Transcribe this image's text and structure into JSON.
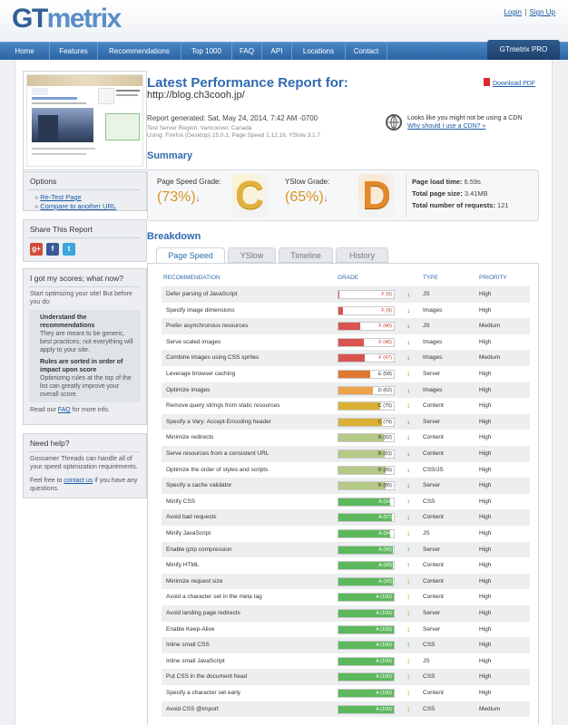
{
  "header": {
    "logo": "GTmetrix",
    "login": "Login",
    "signup": "Sign Up",
    "separator": "|"
  },
  "nav": {
    "items": [
      "Home",
      "Features",
      "Recommendations",
      "Top 1000",
      "FAQ",
      "API",
      "Locations",
      "Contact"
    ],
    "pro": "GTmetrix PRO"
  },
  "report": {
    "title": "Latest Performance Report for:",
    "url": "http://blog.ch3cooh.jp/",
    "download_pdf": "Download PDF",
    "generated": "Report generated: Sat, May 24, 2014, 7:42 AM -0700",
    "server_region": "Test Server Region: Vancouver, Canada",
    "using": "Using: Firefox (Desktop) 25.0.1, Page Speed 1.12.16, YSlow 3.1.7",
    "cdn_line1": "Looks like you might not be using a CDN",
    "cdn_line2": "Why should I use a CDN? »"
  },
  "summary": {
    "heading": "Summary",
    "pagespeed_label": "Page Speed Grade:",
    "pagespeed_score": "(73%)",
    "pagespeed_letter": "C",
    "yslow_label": "YSlow Grade:",
    "yslow_score": "(65%)",
    "yslow_letter": "D",
    "load_time_label": "Page load time:",
    "load_time": "6.59s",
    "size_label": "Total page size:",
    "size": "3.41MB",
    "requests_label": "Total number of requests:",
    "requests": "121"
  },
  "sidebar": {
    "options_title": "Options",
    "retest": "Re-Test Page",
    "compare": "Compare to another URL",
    "share_title": "Share This Report",
    "scores_title": "I got my scores; what now?",
    "scores_intro": "Start optimizing your site! But before you do:",
    "tip1_title": "Understand the recommendations",
    "tip1_text": "They are meant to be generic, best practices; not everything will apply to your site.",
    "tip2_title": "Rules are sorted in order of impact upon score",
    "tip2_text": "Optimizing rules at the top of the list can greatly improve your overall score.",
    "read_our": "Read our",
    "faq": "FAQ",
    "more_info": "for more info.",
    "help_title": "Need help?",
    "help_text": "Gossamer Threads can handle all of your speed optimization requirements.",
    "feel_free": "Feel free to",
    "contact_us": "contact us",
    "questions": "if you have any questions."
  },
  "breakdown": {
    "heading": "Breakdown",
    "tabs": [
      "Page Speed",
      "YSlow",
      "Timeline",
      "History"
    ],
    "columns": [
      "RECOMMENDATION",
      "GRADE",
      "TYPE",
      "PRIORITY"
    ],
    "rows": [
      {
        "name": "Defer parsing of JavaScript",
        "grade": "F (0)",
        "score": 0,
        "color": "#d9534f",
        "dir": "down",
        "type": "JS",
        "priority": "High"
      },
      {
        "name": "Specify image dimensions",
        "grade": "F (9)",
        "score": 9,
        "color": "#d9534f",
        "dir": "down",
        "type": "Images",
        "priority": "High"
      },
      {
        "name": "Prefer asynchronous resources",
        "grade": "F (40)",
        "score": 40,
        "color": "#d9534f",
        "dir": "down",
        "type": "JS",
        "priority": "Medium"
      },
      {
        "name": "Serve scaled images",
        "grade": "F (46)",
        "score": 46,
        "color": "#d9534f",
        "dir": "down",
        "type": "Images",
        "priority": "High"
      },
      {
        "name": "Combine images using CSS sprites",
        "grade": "F (47)",
        "score": 47,
        "color": "#d9534f",
        "dir": "down",
        "type": "Images",
        "priority": "Medium"
      },
      {
        "name": "Leverage browser caching",
        "grade": "E (58)",
        "score": 58,
        "color": "#e0782f",
        "dir": "updown",
        "type": "Server",
        "priority": "High"
      },
      {
        "name": "Optimize images",
        "grade": "D (62)",
        "score": 62,
        "color": "#eda24a",
        "dir": "down",
        "type": "Images",
        "priority": "High"
      },
      {
        "name": "Remove query strings from static resources",
        "grade": "C (75)",
        "score": 75,
        "color": "#d9b134",
        "dir": "updown",
        "type": "Content",
        "priority": "High"
      },
      {
        "name": "Specify a Vary: Accept-Encoding header",
        "grade": "C (79)",
        "score": 79,
        "color": "#d9b134",
        "dir": "down",
        "type": "Server",
        "priority": "High"
      },
      {
        "name": "Minimize redirects",
        "grade": "B (82)",
        "score": 82,
        "color": "#b4c987",
        "dir": "down",
        "type": "Content",
        "priority": "High"
      },
      {
        "name": "Serve resources from a consistent URL",
        "grade": "B (83)",
        "score": 83,
        "color": "#b4c987",
        "dir": "down",
        "type": "Content",
        "priority": "High"
      },
      {
        "name": "Optimize the order of styles and scripts",
        "grade": "B (85)",
        "score": 85,
        "color": "#b4c987",
        "dir": "down",
        "type": "CSS/JS",
        "priority": "High"
      },
      {
        "name": "Specify a cache validator",
        "grade": "B (85)",
        "score": 85,
        "color": "#b4c987",
        "dir": "down",
        "type": "Server",
        "priority": "High"
      },
      {
        "name": "Minify CSS",
        "grade": "A (94)",
        "score": 94,
        "color": "#5cb85c",
        "dir": "up",
        "type": "CSS",
        "priority": "High"
      },
      {
        "name": "Avoid bad requests",
        "grade": "A (97)",
        "score": 97,
        "color": "#5cb85c",
        "dir": "down",
        "type": "Content",
        "priority": "High"
      },
      {
        "name": "Minify JavaScript",
        "grade": "A (94)",
        "score": 94,
        "color": "#5cb85c",
        "dir": "updown",
        "type": "JS",
        "priority": "High"
      },
      {
        "name": "Enable gzip compression",
        "grade": "A (99)",
        "score": 99,
        "color": "#5cb85c",
        "dir": "up",
        "type": "Server",
        "priority": "High"
      },
      {
        "name": "Minify HTML",
        "grade": "A (99)",
        "score": 99,
        "color": "#5cb85c",
        "dir": "up",
        "type": "Content",
        "priority": "High"
      },
      {
        "name": "Minimize request size",
        "grade": "A (99)",
        "score": 99,
        "color": "#5cb85c",
        "dir": "updown",
        "type": "Content",
        "priority": "High"
      },
      {
        "name": "Avoid a character set in the meta tag",
        "grade": "A (100)",
        "score": 100,
        "color": "#5cb85c",
        "dir": "updown",
        "type": "Content",
        "priority": "High"
      },
      {
        "name": "Avoid landing page redirects",
        "grade": "A (100)",
        "score": 100,
        "color": "#5cb85c",
        "dir": "updown",
        "type": "Server",
        "priority": "High"
      },
      {
        "name": "Enable Keep-Alive",
        "grade": "A (100)",
        "score": 100,
        "color": "#5cb85c",
        "dir": "updown",
        "type": "Server",
        "priority": "High"
      },
      {
        "name": "Inline small CSS",
        "grade": "A (100)",
        "score": 100,
        "color": "#5cb85c",
        "dir": "up",
        "type": "CSS",
        "priority": "High"
      },
      {
        "name": "Inline small JavaScript",
        "grade": "A (100)",
        "score": 100,
        "color": "#5cb85c",
        "dir": "updown",
        "type": "JS",
        "priority": "High"
      },
      {
        "name": "Put CSS in the document head",
        "grade": "A (100)",
        "score": 100,
        "color": "#5cb85c",
        "dir": "updown",
        "type": "CSS",
        "priority": "High"
      },
      {
        "name": "Specify a character set early",
        "grade": "A (100)",
        "score": 100,
        "color": "#5cb85c",
        "dir": "updown",
        "type": "Content",
        "priority": "High"
      },
      {
        "name": "Avoid CSS @import",
        "grade": "A (100)",
        "score": 100,
        "color": "#5cb85c",
        "dir": "updown",
        "type": "CSS",
        "priority": "Medium"
      }
    ]
  }
}
